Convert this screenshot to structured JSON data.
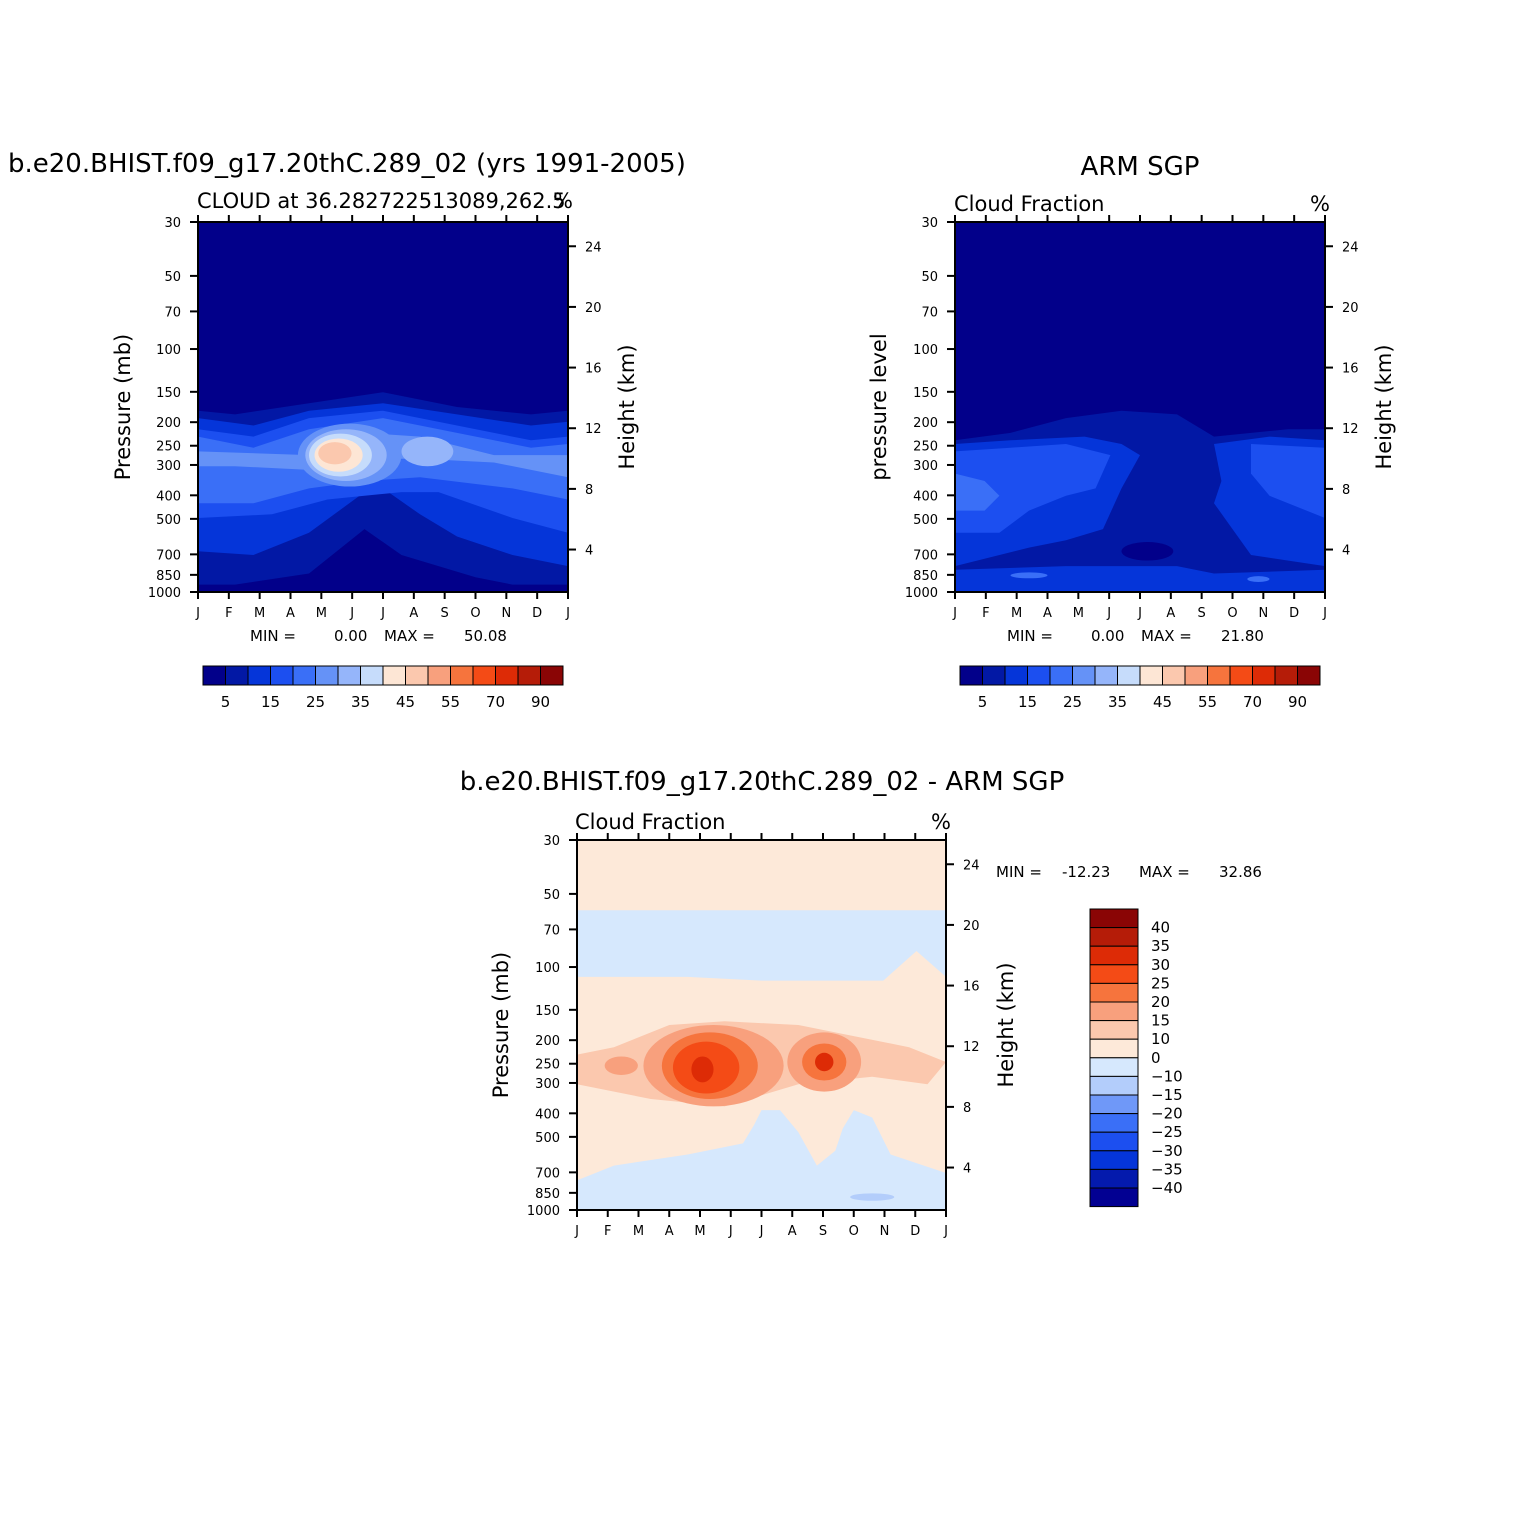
{
  "palette": {
    "seq": [
      "#02008a",
      "#0218a5",
      "#0535d9",
      "#1c4ff0",
      "#3a6ff7",
      "#6592f7",
      "#95b5fa",
      "#c6dcfb",
      "#fde6d5",
      "#fbc8ae",
      "#f8a07d",
      "#f6743d",
      "#f44b16",
      "#dd2b06",
      "#b51c08",
      "#8a0505"
    ],
    "diff": [
      "#020092",
      "#041aad",
      "#0535d9",
      "#1c4ff0",
      "#3a6ff7",
      "#6f98f8",
      "#b3cdfb",
      "#d6e8fd",
      "#fde9d9",
      "#fbc8ae",
      "#f8a07d",
      "#f6743d",
      "#f44b16",
      "#dd2b06",
      "#b51c08",
      "#8a0505"
    ]
  },
  "chart_data": [
    {
      "type": "heatmap",
      "title": "b.e20.BHIST.f09_g17.20thC.289_02 (yrs 1991-2005)",
      "subtitle_left": "CLOUD at 36.282722513089,262.5",
      "subtitle_right": "%",
      "ylabel": "Pressure (mb)",
      "y2label": "Height (km)",
      "x": [
        "J",
        "F",
        "M",
        "A",
        "M",
        "J",
        "J",
        "A",
        "S",
        "O",
        "N",
        "D",
        "J"
      ],
      "yticks": [
        "30",
        "50",
        "70",
        "100",
        "150",
        "200",
        "250",
        "300",
        "400",
        "500",
        "700",
        "850",
        "1000"
      ],
      "y2ticks": [
        "24",
        "20",
        "16",
        "12",
        "8",
        "4"
      ],
      "stats": {
        "min_label": "MIN =",
        "min": "0.00",
        "max_label": "MAX =",
        "max": "50.08"
      },
      "colorbar_labels": [
        "5",
        "15",
        "25",
        "35",
        "45",
        "55",
        "70",
        "90"
      ]
    },
    {
      "type": "heatmap",
      "title": "ARM SGP",
      "subtitle_left": "Cloud Fraction",
      "subtitle_right": "%",
      "ylabel": "pressure level",
      "y2label": "Height (km)",
      "x": [
        "J",
        "F",
        "M",
        "A",
        "M",
        "J",
        "J",
        "A",
        "S",
        "O",
        "N",
        "D",
        "J"
      ],
      "yticks": [
        "30",
        "50",
        "70",
        "100",
        "150",
        "200",
        "250",
        "300",
        "400",
        "500",
        "700",
        "850",
        "1000"
      ],
      "y2ticks": [
        "24",
        "20",
        "16",
        "12",
        "8",
        "4"
      ],
      "stats": {
        "min_label": "MIN =",
        "min": "0.00",
        "max_label": "MAX =",
        "max": "21.80"
      },
      "colorbar_labels": [
        "5",
        "15",
        "25",
        "35",
        "45",
        "55",
        "70",
        "90"
      ]
    },
    {
      "type": "heatmap",
      "title": "b.e20.BHIST.f09_g17.20thC.289_02 - ARM SGP",
      "subtitle_left": "Cloud Fraction",
      "subtitle_right": "%",
      "ylabel": "Pressure (mb)",
      "y2label": "Height (km)",
      "x": [
        "J",
        "F",
        "M",
        "A",
        "M",
        "J",
        "J",
        "A",
        "S",
        "O",
        "N",
        "D",
        "J"
      ],
      "yticks": [
        "30",
        "50",
        "70",
        "100",
        "150",
        "200",
        "250",
        "300",
        "400",
        "500",
        "700",
        "850",
        "1000"
      ],
      "y2ticks": [
        "24",
        "20",
        "16",
        "12",
        "8",
        "4"
      ],
      "stats": {
        "min_label": "MIN =",
        "min": "-12.23",
        "max_label": "MAX =",
        "max": "32.86"
      },
      "colorbar_labels": [
        "40",
        "35",
        "30",
        "25",
        "20",
        "15",
        "10",
        "0",
        "-10",
        "-15",
        "-20",
        "-25",
        "-30",
        "-35",
        "-40"
      ]
    }
  ]
}
